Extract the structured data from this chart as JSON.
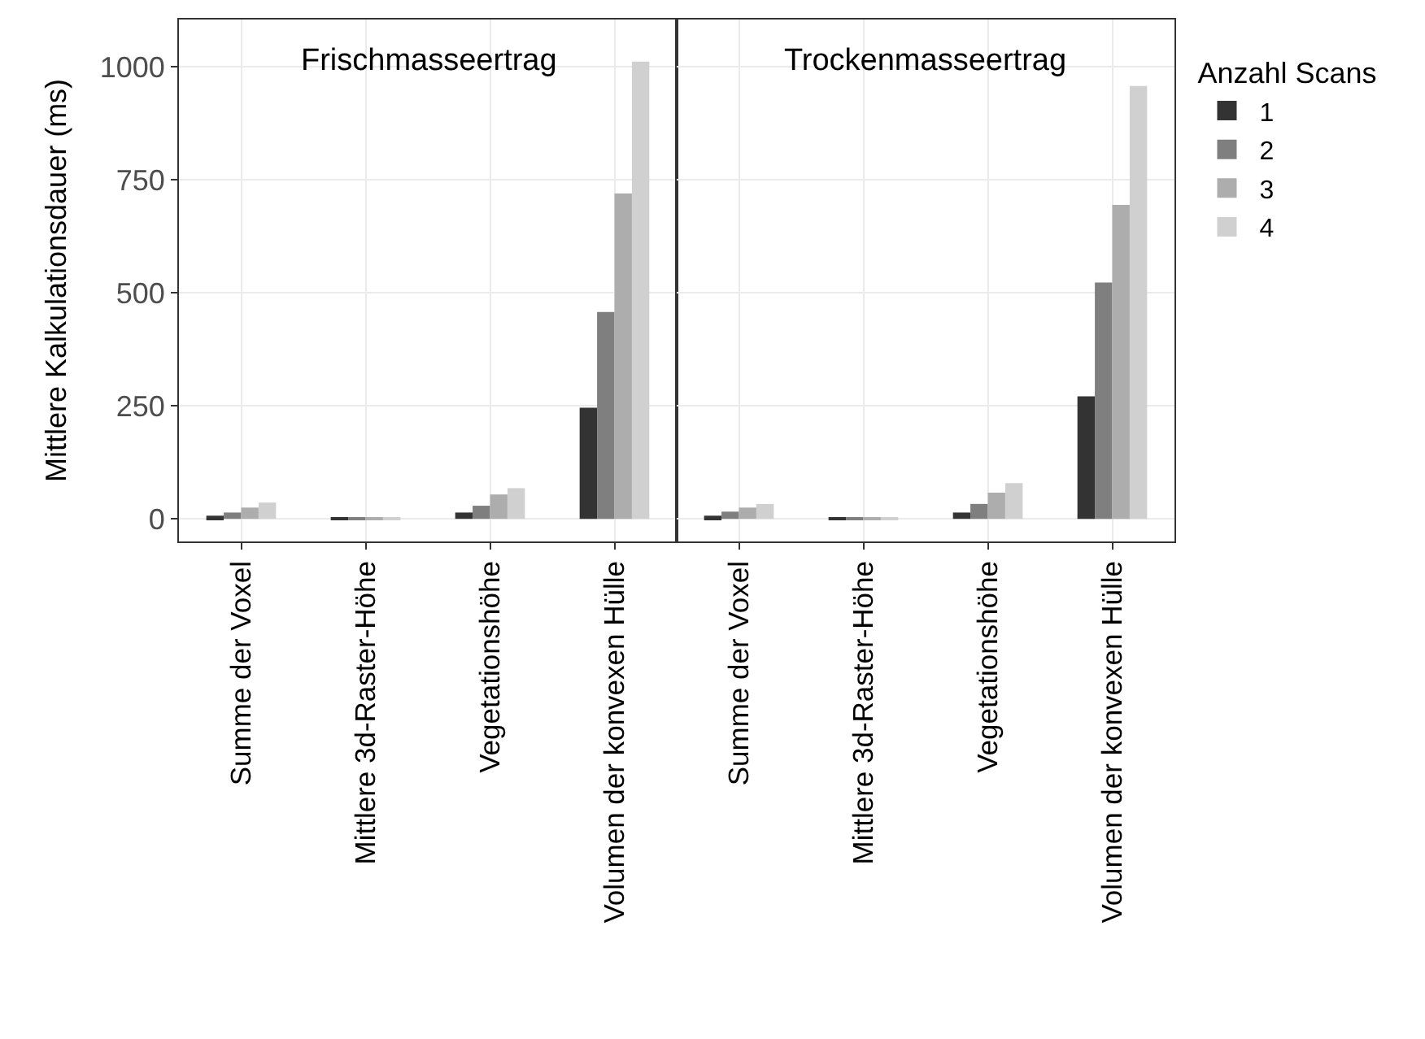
{
  "chart_data": [
    {
      "type": "bar",
      "title": "Frischmasseertrag",
      "ylabel": "Mittlere Kalkulationsdauer (ms)",
      "categories": [
        "Summe der Voxel",
        "Mittlere 3d-Raster-Höhe",
        "Vegetationshöhe",
        "Volumen der konvexen Hülle"
      ],
      "series": [
        {
          "name": "1",
          "color": "#333333",
          "values": [
            7,
            2,
            14,
            246
          ]
        },
        {
          "name": "2",
          "color": "#7f7f7f",
          "values": [
            14,
            2,
            29,
            458
          ]
        },
        {
          "name": "3",
          "color": "#adadad",
          "values": [
            25,
            4,
            54,
            720
          ]
        },
        {
          "name": "4",
          "color": "#d0d0d0",
          "values": [
            36,
            4,
            68,
            1012
          ]
        }
      ],
      "ylim": [
        -50,
        1105
      ],
      "yticks": [
        0,
        250,
        500,
        750,
        1000
      ],
      "grid": true,
      "legend": "right"
    },
    {
      "type": "bar",
      "title": "Trockenmasseertrag",
      "legend_title": "Anzahl Scans",
      "categories": [
        "Summe der Voxel",
        "Mittlere 3d-Raster-Höhe",
        "Vegetationshöhe",
        "Volumen der konvexen Hülle"
      ],
      "series": [
        {
          "name": "1",
          "color": "#333333",
          "values": [
            7,
            2,
            14,
            271
          ]
        },
        {
          "name": "2",
          "color": "#7f7f7f",
          "values": [
            16,
            2,
            33,
            523
          ]
        },
        {
          "name": "3",
          "color": "#adadad",
          "values": [
            25,
            4,
            58,
            695
          ]
        },
        {
          "name": "4",
          "color": "#d0d0d0",
          "values": [
            33,
            4,
            79,
            958
          ]
        }
      ],
      "ylim": [
        -50,
        1105
      ],
      "yticks": [
        0,
        250,
        500,
        750,
        1000
      ],
      "grid": true,
      "legend": "right",
      "tick_labels": "x"
    }
  ]
}
